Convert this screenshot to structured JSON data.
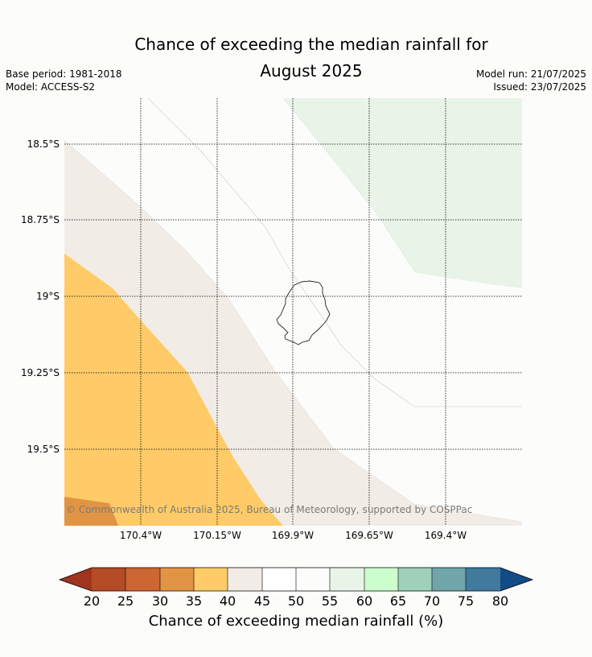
{
  "title_line1": "Chance of exceeding the median rainfall for",
  "title_line2": "August 2025",
  "meta": {
    "base_period": "Base period: 1981-2018",
    "model": "Model: ACCESS-S2",
    "model_run": "Model run: 21/07/2025",
    "issued": "Issued: 23/07/2025"
  },
  "lat_labels": [
    "18.5°S",
    "18.75°S",
    "19°S",
    "19.25°S",
    "19.5°S"
  ],
  "lon_labels": [
    "170.4°W",
    "170.15°W",
    "169.9°W",
    "169.65°W",
    "169.4°W"
  ],
  "copyright": "© Commonwealth of Australia 2025, Bureau of Meteorology, supported by COSPPac",
  "colorbar": {
    "title": "Chance of exceeding median rainfall (%)",
    "ticks": [
      "20",
      "25",
      "30",
      "35",
      "40",
      "45",
      "50",
      "55",
      "60",
      "65",
      "70",
      "75",
      "80"
    ],
    "colors": [
      "#a0341c",
      "#b44c26",
      "#cc6633",
      "#e29445",
      "#fecb68",
      "#f2ece6",
      "#fdfefd",
      "#fcfdfb",
      "#e9f4e8",
      "#ccfdcc",
      "#9fd0ba",
      "#70a5aa",
      "#417a9c",
      "#124c86"
    ]
  }
}
